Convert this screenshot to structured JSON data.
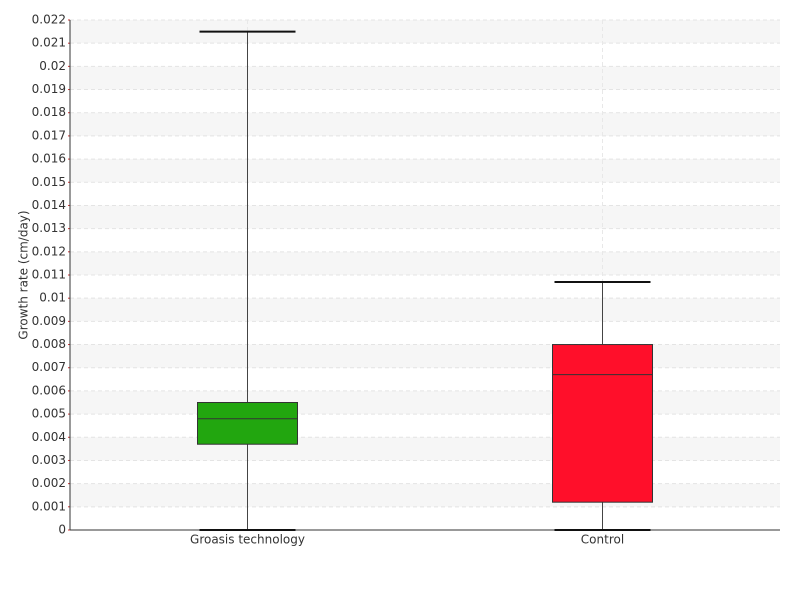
{
  "chart_data": {
    "type": "box",
    "y_label": "Growth rate (cm/day)",
    "categories": [
      "Groasis technology",
      "Control"
    ],
    "colors": [
      "#22a60f",
      "#ff0f2a"
    ],
    "min": [
      0,
      0
    ],
    "q1": [
      0.0037,
      0.0012
    ],
    "median": [
      0.0048,
      0.0067
    ],
    "q3": [
      0.0055,
      0.008
    ],
    "max": [
      0.0215,
      0.0107
    ],
    "ylim": [
      0,
      0.022
    ],
    "yticks": [
      0,
      0.001,
      0.002,
      0.003,
      0.004,
      0.005,
      0.006,
      0.007,
      0.008,
      0.009,
      0.01,
      0.011,
      0.012,
      0.013,
      0.014,
      0.015,
      0.016,
      0.017,
      0.018,
      0.019,
      0.02,
      0.021,
      0.022
    ],
    "grid": true
  }
}
